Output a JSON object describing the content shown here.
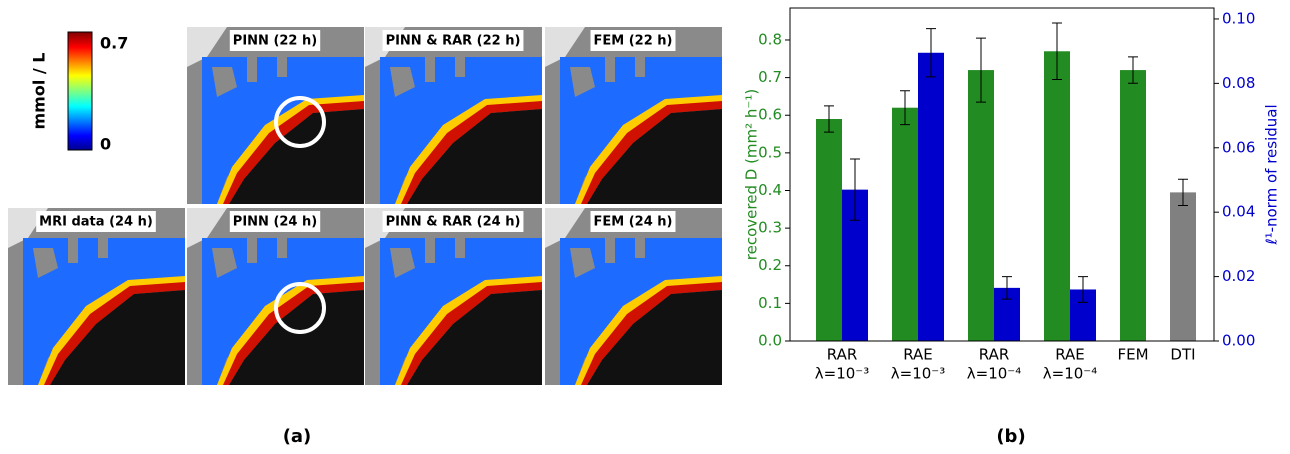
{
  "figure_a": {
    "colorbar": {
      "label": "mmol / L",
      "ticks": [
        {
          "value": 0.7,
          "label": "0.7"
        },
        {
          "value": 0,
          "label": "0"
        }
      ]
    },
    "panels": [
      "PINN (22 h)",
      "PINN & RAR (22 h)",
      "FEM (22 h)",
      "MRI data (24 h)",
      "PINN (24 h)",
      "PINN & RAR (24 h)",
      "FEM (24 h)"
    ]
  },
  "captions": [
    "(a)",
    "(b)"
  ],
  "chart_data": {
    "type": "bar",
    "ylabel": "recovered D (mm² h⁻¹)",
    "y2label": "ℓ¹-norm of residual",
    "categories": [
      [
        "RAR",
        "λ=10⁻³"
      ],
      [
        "RAE",
        "λ=10⁻³"
      ],
      [
        "RAR",
        "λ=10⁻⁴"
      ],
      [
        "RAE",
        "λ=10⁻⁴"
      ],
      [
        "FEM"
      ],
      [
        "DTI"
      ]
    ],
    "series": [
      {
        "colors": [
          "#228b22",
          "#228b22",
          "#228b22",
          "#228b22",
          "#228b22",
          "#808080"
        ],
        "values": [
          0.59,
          0.62,
          0.72,
          0.77,
          0.72,
          0.395
        ],
        "errors": [
          0.035,
          0.045,
          0.085,
          0.075,
          0.035,
          0.035
        ]
      },
      {
        "color": "#0000cd",
        "axis": "y2",
        "values": [
          0.047,
          0.0895,
          0.0165,
          0.016,
          null,
          null
        ],
        "errors": [
          0.0095,
          0.0075,
          0.0035,
          0.004,
          null,
          null
        ]
      }
    ],
    "ylim": [
      0,
      0.885
    ],
    "yticks": [
      {
        "value": 0,
        "label": "0.0"
      },
      0.1,
      0.2,
      0.3,
      0.4,
      0.5,
      0.6,
      0.7,
      0.8
    ],
    "y2lim": [
      0,
      0.1034
    ],
    "y2ticks": [
      {
        "value": 0,
        "label": "0.00"
      },
      {
        "value": 0.02,
        "label": "0.02"
      },
      {
        "value": 0.04,
        "label": "0.04"
      },
      {
        "value": 0.06,
        "label": "0.06"
      },
      {
        "value": 0.08,
        "label": "0.08"
      },
      {
        "value": 0.1,
        "label": "0.10"
      }
    ],
    "ycolor": "#228b22",
    "y2color": "#0000cd"
  }
}
